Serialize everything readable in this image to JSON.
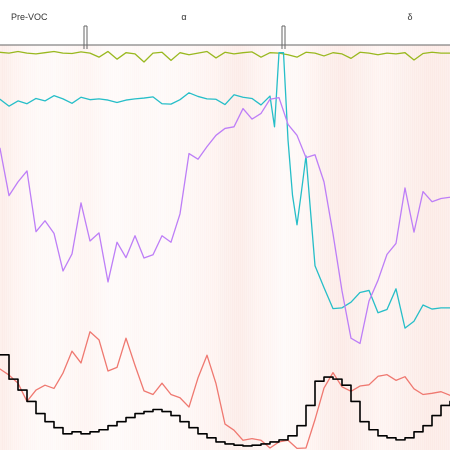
{
  "chart_data": {
    "type": "line",
    "xlim": [
      0,
      100
    ],
    "ylim": [
      0,
      100
    ],
    "grid": false,
    "legend": "none",
    "background": "#ffffff",
    "shade_color": "#fbe2dc",
    "periods": [
      {
        "label": "Pre-VOC",
        "start": 0,
        "end": 19
      },
      {
        "label": "α",
        "start": 19,
        "end": 63
      },
      {
        "label": "δ",
        "start": 63,
        "end": 100
      }
    ],
    "shading": [
      {
        "x": 0,
        "v": 0.55
      },
      {
        "x": 3,
        "v": 0.35
      },
      {
        "x": 7,
        "v": 0.2
      },
      {
        "x": 12,
        "v": 0.15
      },
      {
        "x": 17,
        "v": 0.25
      },
      {
        "x": 19,
        "v": 0.3
      },
      {
        "x": 25,
        "v": 0.12
      },
      {
        "x": 30,
        "v": 0.2
      },
      {
        "x": 36,
        "v": 0.15
      },
      {
        "x": 42,
        "v": 0.22
      },
      {
        "x": 48,
        "v": 0.35
      },
      {
        "x": 53,
        "v": 0.55
      },
      {
        "x": 57,
        "v": 0.35
      },
      {
        "x": 60,
        "v": 0.25
      },
      {
        "x": 63,
        "v": 0.15
      },
      {
        "x": 67,
        "v": 0.2
      },
      {
        "x": 72,
        "v": 0.45
      },
      {
        "x": 76,
        "v": 0.6
      },
      {
        "x": 80,
        "v": 0.45
      },
      {
        "x": 85,
        "v": 0.3
      },
      {
        "x": 90,
        "v": 0.45
      },
      {
        "x": 95,
        "v": 0.6
      },
      {
        "x": 100,
        "v": 0.55
      }
    ],
    "series": [
      {
        "color": "#99b81f",
        "style": "line",
        "x": [
          0,
          2,
          4,
          6,
          8,
          10,
          12,
          14,
          16,
          18,
          20,
          22,
          24,
          26,
          28,
          30,
          32,
          34,
          36,
          38,
          40,
          42,
          44,
          46,
          48,
          50,
          52,
          54,
          56,
          58,
          60,
          62,
          64,
          66,
          68,
          70,
          72,
          74,
          76,
          78,
          80,
          82,
          84,
          86,
          88,
          90,
          92,
          94,
          96,
          98,
          100
        ],
        "y": [
          98.2,
          98.0,
          98.4,
          98.0,
          97.8,
          98.1,
          98.4,
          98.0,
          97.9,
          98.3,
          98.0,
          97.0,
          98.4,
          96.5,
          98.1,
          97.8,
          95.8,
          98.0,
          98.2,
          96.2,
          98.1,
          97.6,
          98.0,
          98.4,
          96.8,
          98.2,
          97.8,
          98.1,
          98.3,
          97.0,
          98.1,
          98.0,
          97.6,
          97.0,
          98.2,
          98.0,
          97.3,
          98.1,
          97.8,
          96.7,
          98.2,
          98.0,
          97.6,
          98.0,
          97.8,
          98.1,
          96.3,
          97.9,
          98.2,
          98.0,
          98.0
        ]
      },
      {
        "color": "#26bec8",
        "style": "line",
        "x": [
          0,
          2,
          4,
          6,
          8,
          10,
          12,
          14,
          16,
          18,
          20,
          22,
          24,
          26,
          28,
          30,
          32,
          34,
          36,
          38,
          40,
          42,
          44,
          46,
          48,
          50,
          52,
          54,
          56,
          58,
          60,
          61,
          62,
          63,
          64,
          65,
          66,
          67,
          68,
          70,
          72,
          74,
          76,
          78,
          80,
          82,
          84,
          86,
          88,
          90,
          92,
          94,
          96,
          98,
          100
        ],
        "y": [
          86.6,
          84.9,
          86.2,
          85.5,
          86.8,
          86.2,
          87.5,
          86.7,
          85.6,
          87.1,
          86.5,
          86.7,
          86.4,
          85.8,
          86.4,
          86.7,
          86.9,
          87.2,
          85.5,
          85.4,
          86.5,
          88.2,
          87.3,
          86.7,
          86.6,
          85.3,
          87.7,
          87.1,
          86.8,
          85.2,
          87.4,
          79.8,
          98.1,
          98.1,
          76.6,
          62.9,
          55.6,
          63.9,
          72.6,
          45.5,
          40.1,
          34.9,
          35.1,
          36.5,
          38.9,
          39.4,
          33.9,
          34.7,
          39.8,
          30.1,
          31.8,
          35.8,
          34.8,
          35.1,
          35.1
        ]
      },
      {
        "color": "#bd7ef7",
        "style": "line",
        "x": [
          0,
          2,
          4,
          6,
          8,
          10,
          12,
          14,
          16,
          18,
          20,
          22,
          24,
          26,
          28,
          30,
          32,
          34,
          36,
          38,
          40,
          42,
          44,
          46,
          48,
          50,
          52,
          54,
          56,
          58,
          60,
          62,
          64,
          66,
          68,
          70,
          72,
          74,
          76,
          78,
          80,
          82,
          84,
          86,
          88,
          90,
          92,
          94,
          96,
          98,
          100
        ],
        "y": [
          74.5,
          62.8,
          66.2,
          68.9,
          53.9,
          56.6,
          53.5,
          44.2,
          48.4,
          61.0,
          51.6,
          53.6,
          41.5,
          51.3,
          47.5,
          52.9,
          47.4,
          48.2,
          52.9,
          51.3,
          58.3,
          73.2,
          71.8,
          74.9,
          77.7,
          79.4,
          79.8,
          84.3,
          81.7,
          83.1,
          86.6,
          87.0,
          80.4,
          77.7,
          72.2,
          72.9,
          66.2,
          53.4,
          39.3,
          27.6,
          26.3,
          36.8,
          41.9,
          48.3,
          51.0,
          64.7,
          53.8,
          63.8,
          61.3,
          62.1,
          62.4
        ]
      },
      {
        "color": "#ef7870",
        "style": "line",
        "x": [
          0,
          2,
          4,
          6,
          8,
          10,
          12,
          14,
          16,
          18,
          20,
          22,
          24,
          26,
          28,
          30,
          32,
          34,
          36,
          38,
          40,
          42,
          44,
          46,
          48,
          50,
          52,
          54,
          56,
          58,
          60,
          62,
          64,
          66,
          68,
          70,
          72,
          74,
          76,
          78,
          80,
          82,
          84,
          86,
          88,
          90,
          92,
          94,
          96,
          98,
          100
        ],
        "y": [
          20.0,
          18.5,
          16.5,
          12.0,
          14.8,
          16.0,
          15.2,
          19.0,
          24.4,
          21.5,
          29.2,
          27.2,
          19.5,
          20.4,
          27.6,
          20.9,
          14.6,
          13.7,
          16.5,
          13.7,
          12.9,
          10.6,
          17.8,
          23.4,
          16.4,
          6.4,
          4.9,
          2.4,
          2.8,
          2.4,
          0.5,
          2.0,
          2.4,
          0.4,
          0.5,
          7.5,
          15.3,
          19.1,
          15.6,
          14.5,
          15.8,
          16.1,
          18.2,
          18.6,
          17.2,
          18.1,
          15.1,
          13.7,
          14.0,
          14.4,
          13.5
        ]
      },
      {
        "color": "#000000",
        "style": "step",
        "x": [
          0,
          2,
          4,
          6,
          8,
          10,
          12,
          14,
          16,
          18,
          20,
          22,
          24,
          26,
          28,
          30,
          32,
          34,
          36,
          38,
          40,
          42,
          44,
          46,
          48,
          50,
          52,
          54,
          56,
          58,
          60,
          62,
          64,
          66,
          68,
          70,
          72,
          74,
          76,
          78,
          80,
          82,
          84,
          86,
          88,
          90,
          92,
          94,
          96,
          98,
          100
        ],
        "y": [
          23.5,
          17.5,
          14.8,
          12.0,
          9.0,
          7.0,
          5.5,
          4.0,
          4.5,
          4.0,
          4.5,
          5.0,
          6.0,
          7.0,
          8.0,
          9.0,
          9.5,
          10.0,
          9.5,
          8.5,
          7.0,
          5.5,
          4.0,
          3.0,
          2.0,
          1.5,
          1.2,
          1.0,
          1.2,
          1.5,
          2.0,
          2.5,
          3.5,
          6.0,
          11.0,
          17.0,
          18.0,
          17.5,
          16.0,
          12.0,
          7.0,
          5.0,
          3.5,
          3.0,
          2.5,
          3.0,
          4.5,
          6.0,
          8.5,
          11.0,
          12.0
        ]
      }
    ]
  }
}
